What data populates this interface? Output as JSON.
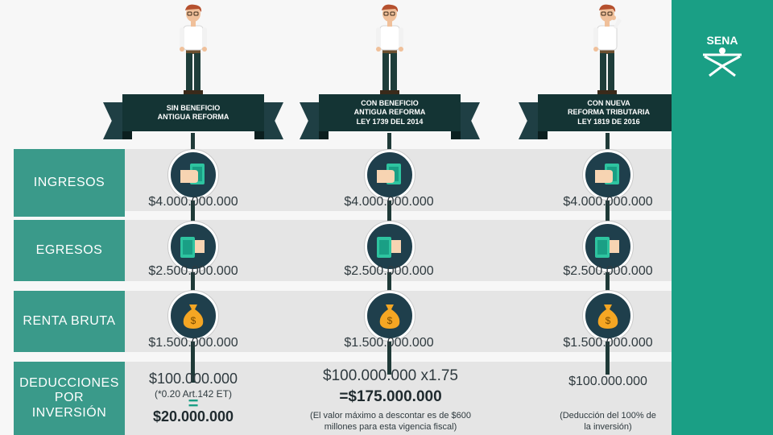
{
  "columns": [
    {
      "title_line1": "SIN BENEFICIO",
      "title_line2": "ANTIGUA REFORMA",
      "title_line3": "",
      "ingresos": "$4.000.000.000",
      "egresos": "$2.500.000.000",
      "renta_bruta": "$1.500.000.000",
      "deduccion_base": "$100.000.000",
      "deduccion_nota": "(*0.20 Art.142 ET)",
      "deduccion_eq": "=",
      "deduccion_total": "$20.000.000"
    },
    {
      "title_line1": "CON BENEFICIO",
      "title_line2": "ANTIGUA REFORMA",
      "title_line3": "LEY 1739 DEL 2014",
      "ingresos": "$4.000.000.000",
      "egresos": "$2.500.000.000",
      "renta_bruta": "$1.500.000.000",
      "deduccion_base": "$100.000.000 x1.75",
      "deduccion_total": "=$175.000.000",
      "deduccion_nota_line1": "(El valor máximo a descontar es de $600",
      "deduccion_nota_line2": "millones para esta vigencia fiscal)"
    },
    {
      "title_line1": "CON NUEVA",
      "title_line2": "REFORMA TRIBUTARIA",
      "title_line3": "LEY 1819 DE 2016",
      "ingresos": "$4.000.000.000",
      "egresos": "$2.500.000.000",
      "renta_bruta": "$1.500.000.000",
      "deduccion_base": "$100.000.000",
      "deduccion_nota_line1": "(Deducción del 100% de",
      "deduccion_nota_line2": "la inversión)"
    }
  ],
  "rows": {
    "ingresos": "INGRESOS",
    "egresos": "EGRESOS",
    "renta_bruta": "RENTA BRUTA",
    "deducciones_line1": "DEDUCCIONES",
    "deducciones_line2": "POR",
    "deducciones_line3": "INVERSIÓN"
  },
  "logo": {
    "text": "SENA"
  },
  "colors": {
    "label_bg": "#3a9a8a",
    "band_bg": "#e5e5e5",
    "banner": "#143434",
    "sena_green": "#1a9f85",
    "icon_bg": "#1f3f4c"
  },
  "icons": {
    "ingresos": "hand-money-icon",
    "egresos": "money-hand-icon",
    "renta_bruta": "money-bag-icon"
  }
}
